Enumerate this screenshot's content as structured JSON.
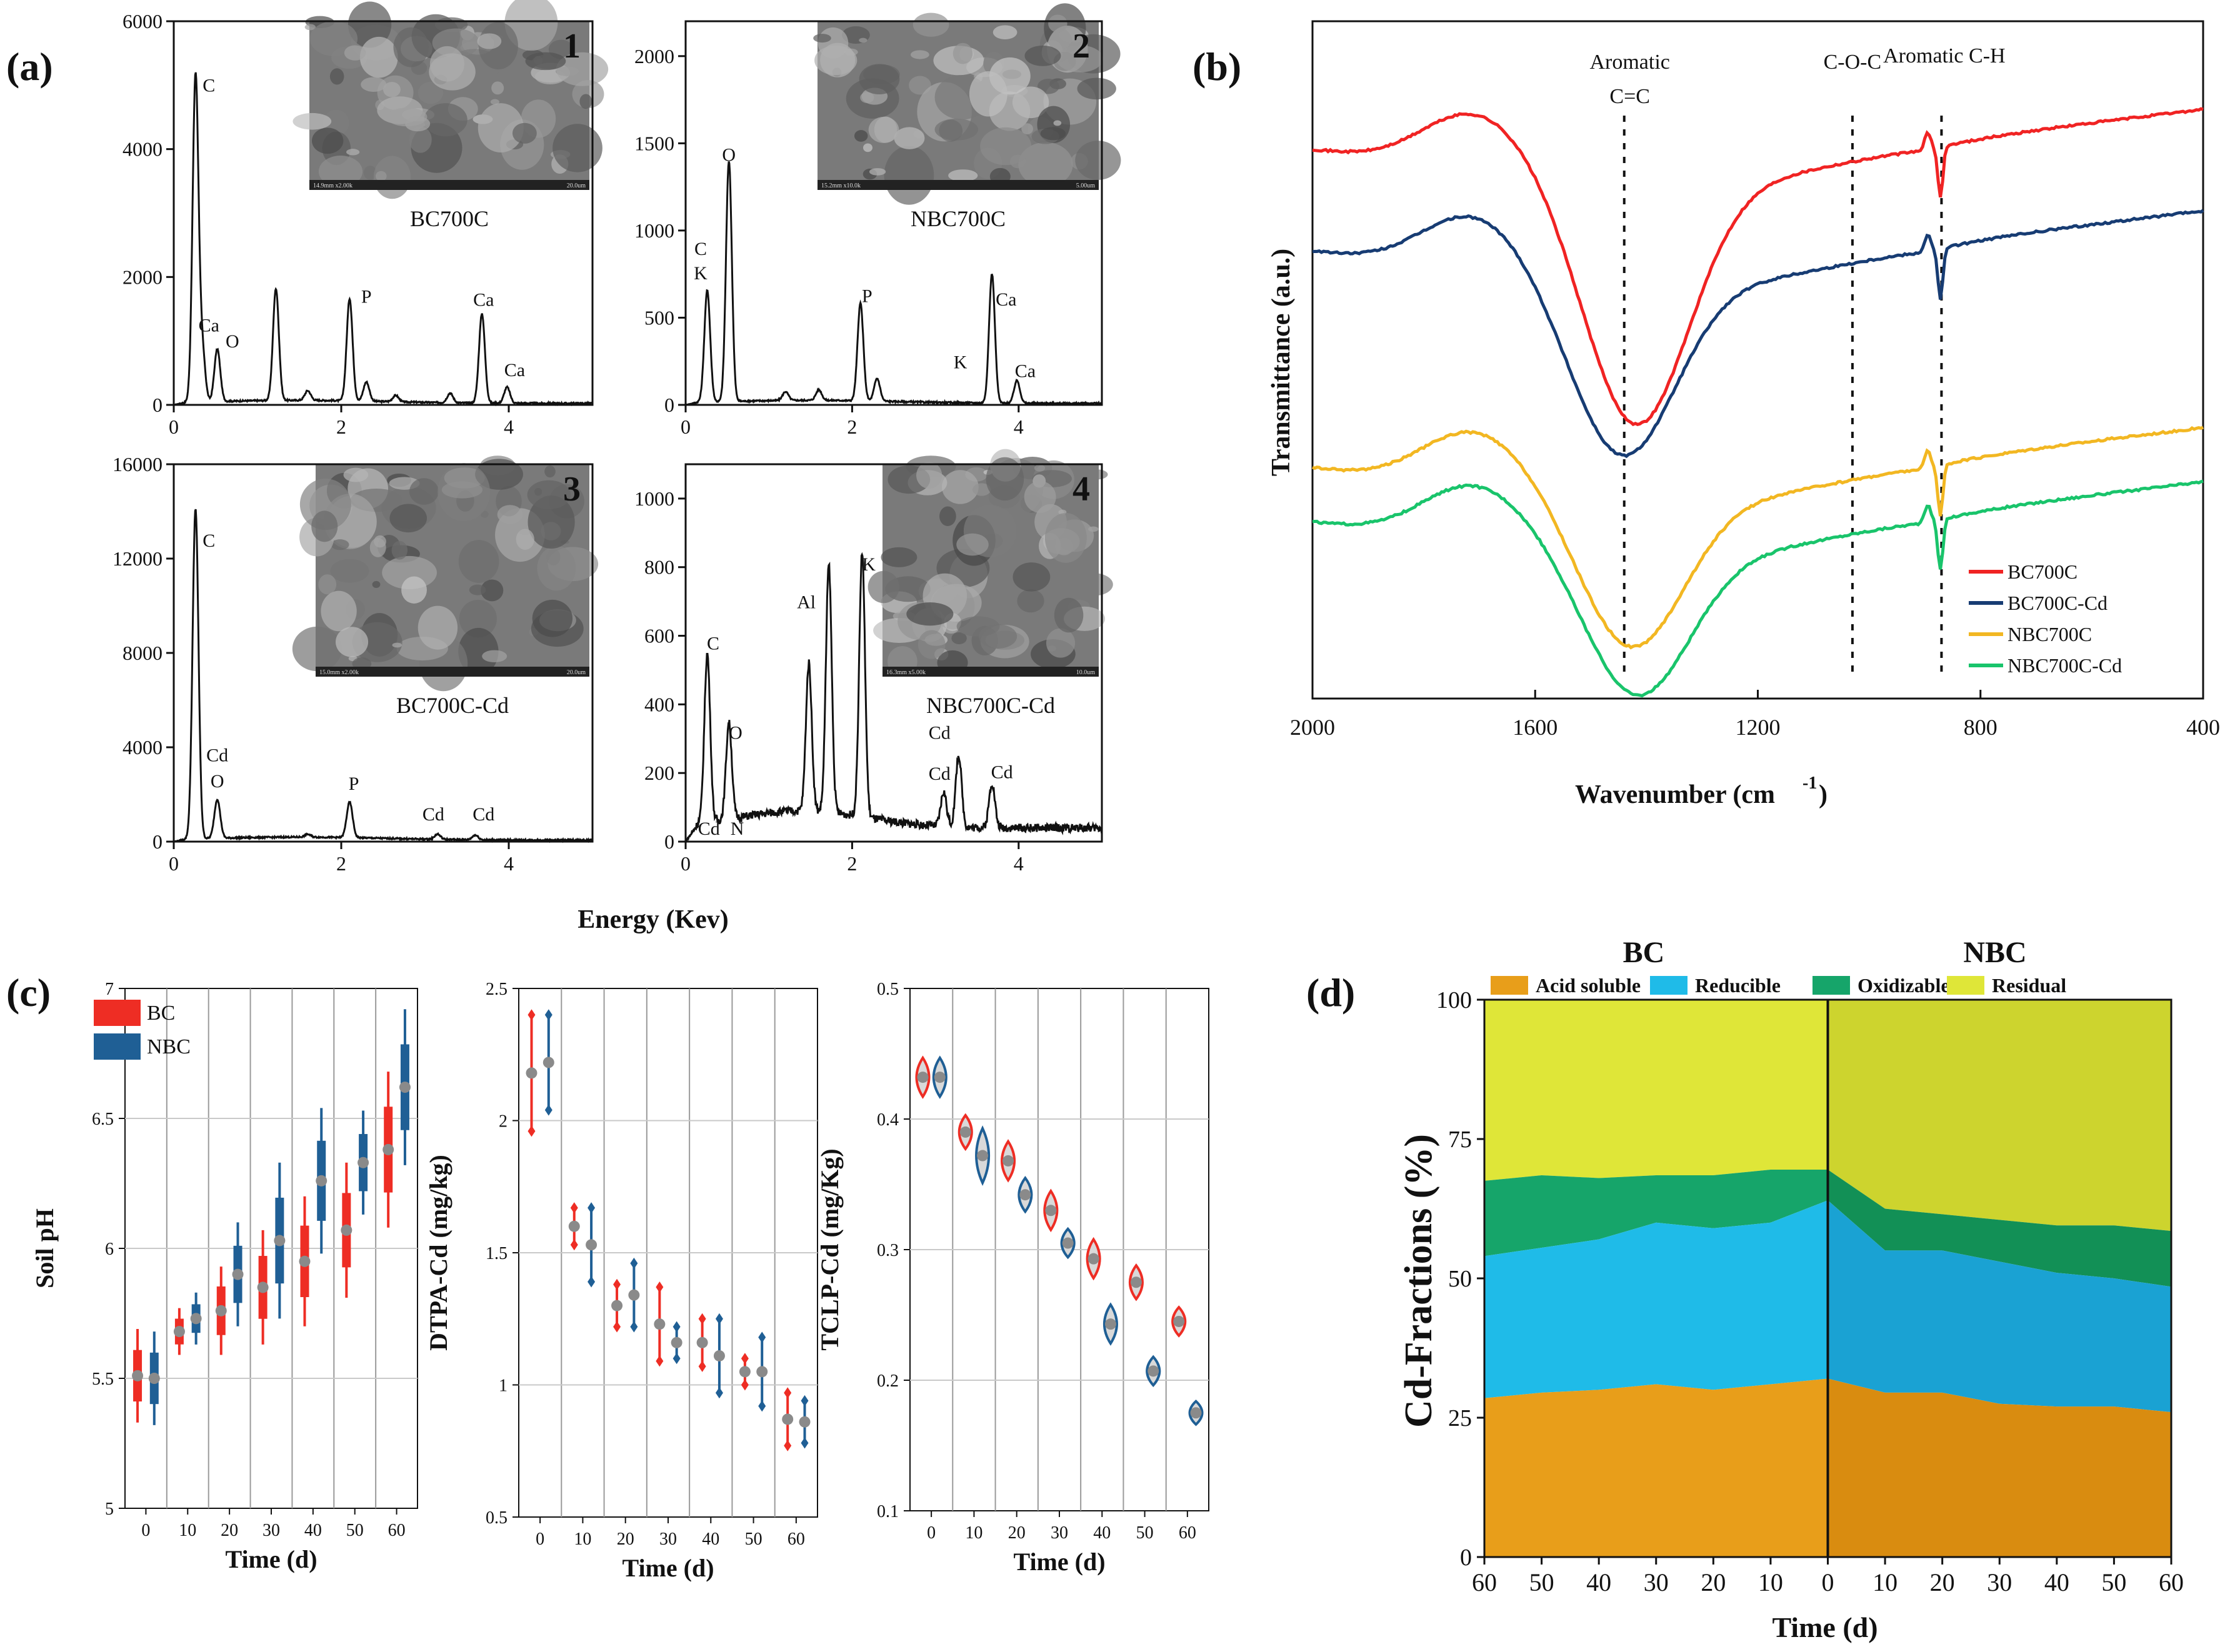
{
  "colors": {
    "bc": "#ee2d24",
    "nbc": "#1f5f95",
    "ftir": [
      "#f02323",
      "#173c73",
      "#f2b722",
      "#19c46b"
    ],
    "fractions": [
      "#e89e1a",
      "#1fbbe8",
      "#16a56a",
      "#dfe638"
    ],
    "fractions_dark": [
      "#d98c10",
      "#1aa2d3",
      "#129056",
      "#cdd42e"
    ],
    "sem_bg": "#7a7a7a"
  },
  "figure": {
    "panel_a_letter": "(a)",
    "panel_b_letter": "(b)",
    "panel_c_letter": "(c)",
    "panel_d_letter": "(d)",
    "energy_xlabel": "Energy (Kev)"
  },
  "chart_data": [
    {
      "type": "line",
      "id": "eds1",
      "title": "BC700C",
      "inset_number": "1",
      "inset_caption": "14.9mm x2.00k",
      "inset_scale": "20.0um",
      "xlim": [
        0,
        5
      ],
      "ylim": [
        0,
        6000
      ],
      "xticks": [
        "0",
        "2",
        "4"
      ],
      "yticks": [
        "0",
        "2000",
        "4000",
        "6000"
      ],
      "xlabel": "Energy (Kev)",
      "peaks": [
        [
          0.26,
          5100
        ],
        [
          0.34,
          800
        ],
        [
          0.52,
          820
        ],
        [
          1.22,
          1750
        ],
        [
          1.6,
          150
        ],
        [
          2.1,
          1600
        ],
        [
          2.3,
          300
        ],
        [
          2.65,
          100
        ],
        [
          3.3,
          150
        ],
        [
          3.68,
          1400
        ],
        [
          3.98,
          250
        ]
      ],
      "labels": [
        {
          "text": "C",
          "x": 0.42,
          "y": 4900
        },
        {
          "text": "Ca",
          "x": 0.42,
          "y": 1150
        },
        {
          "text": "O",
          "x": 0.7,
          "y": 900
        },
        {
          "text": "P",
          "x": 2.3,
          "y": 1600
        },
        {
          "text": "Ca",
          "x": 3.7,
          "y": 1550
        },
        {
          "text": "Ca",
          "x": 4.07,
          "y": 450
        }
      ]
    },
    {
      "type": "line",
      "id": "eds2",
      "title": "NBC700C",
      "inset_number": "2",
      "inset_caption": "15.2mm x10.0k",
      "inset_scale": "5.00um",
      "xlim": [
        0,
        5
      ],
      "ylim": [
        0,
        2200
      ],
      "xticks": [
        "0",
        "2",
        "4"
      ],
      "yticks": [
        "0",
        "500",
        "1000",
        "1500",
        "2000"
      ],
      "xlabel": "Energy (Kev)",
      "peaks": [
        [
          0.26,
          640
        ],
        [
          0.52,
          1380
        ],
        [
          1.2,
          50
        ],
        [
          1.6,
          60
        ],
        [
          2.1,
          560
        ],
        [
          2.3,
          130
        ],
        [
          3.68,
          740
        ],
        [
          3.98,
          130
        ]
      ],
      "labels": [
        {
          "text": "O",
          "x": 0.52,
          "y": 1400
        },
        {
          "text": "C",
          "x": 0.18,
          "y": 860
        },
        {
          "text": "K",
          "x": 0.18,
          "y": 720
        },
        {
          "text": "P",
          "x": 2.18,
          "y": 590
        },
        {
          "text": "Ca",
          "x": 3.85,
          "y": 570
        },
        {
          "text": "K",
          "x": 3.3,
          "y": 210
        },
        {
          "text": "Ca",
          "x": 4.08,
          "y": 160
        }
      ]
    },
    {
      "type": "line",
      "id": "eds3",
      "title": "BC700C-Cd",
      "inset_number": "3",
      "inset_caption": "15.0mm x2.00k",
      "inset_scale": "20.0um",
      "xlim": [
        0,
        5
      ],
      "ylim": [
        0,
        16000
      ],
      "xticks": [
        "0",
        "2",
        "4"
      ],
      "yticks": [
        "0",
        "4000",
        "8000",
        "12000",
        "16000"
      ],
      "xlabel": "Energy (Kev)",
      "peaks": [
        [
          0.26,
          14000
        ],
        [
          0.52,
          1650
        ],
        [
          1.6,
          120
        ],
        [
          2.1,
          1500
        ],
        [
          3.15,
          220
        ],
        [
          3.6,
          200
        ]
      ],
      "labels": [
        {
          "text": "C",
          "x": 0.42,
          "y": 12500
        },
        {
          "text": "Cd",
          "x": 0.52,
          "y": 3400
        },
        {
          "text": "O",
          "x": 0.52,
          "y": 2300
        },
        {
          "text": "P",
          "x": 2.15,
          "y": 2200
        },
        {
          "text": "Cd",
          "x": 3.1,
          "y": 900
        },
        {
          "text": "Cd",
          "x": 3.7,
          "y": 900
        }
      ]
    },
    {
      "type": "line",
      "id": "eds4",
      "title": "NBC700C-Cd",
      "inset_number": "4",
      "inset_caption": "16.3mm x5.00k",
      "inset_scale": "10.0um",
      "xlim": [
        0,
        5
      ],
      "ylim": [
        0,
        1100
      ],
      "xticks": [
        "0",
        "2",
        "4"
      ],
      "yticks": [
        "0",
        "200",
        "400",
        "600",
        "800",
        "1000"
      ],
      "xlabel": "Energy (Kev)",
      "peaks": [
        [
          0.26,
          490
        ],
        [
          0.52,
          280
        ],
        [
          1.48,
          430
        ],
        [
          1.72,
          720
        ],
        [
          2.12,
          770
        ],
        [
          3.1,
          100
        ],
        [
          3.28,
          210
        ],
        [
          3.68,
          130
        ]
      ],
      "labels": [
        {
          "text": "C",
          "x": 0.33,
          "y": 560
        },
        {
          "text": "O",
          "x": 0.6,
          "y": 300
        },
        {
          "text": "Al",
          "x": 1.45,
          "y": 680
        },
        {
          "text": "K",
          "x": 2.2,
          "y": 790
        },
        {
          "text": "Cd",
          "x": 3.05,
          "y": 300
        },
        {
          "text": "Cd",
          "x": 3.05,
          "y": 180
        },
        {
          "text": "Cd",
          "x": 3.8,
          "y": 185
        },
        {
          "text": "Cd",
          "x": 0.28,
          "y": 20
        },
        {
          "text": "N",
          "x": 0.62,
          "y": 20
        }
      ]
    },
    {
      "type": "line",
      "id": "ftir",
      "xlabel": "Wavenumber (cm",
      "xlabel_sup": "-1",
      "xlabel_end": ")",
      "ylabel": "Transmittance (a.u.)",
      "xlim": [
        2000,
        400
      ],
      "xticks": [
        "2000",
        "1600",
        "1200",
        "800",
        "400"
      ],
      "annotations": [
        {
          "text": "Aromatic",
          "x": 1430
        },
        {
          "text": "C=C",
          "x": 1430
        },
        {
          "text": "C-O-C",
          "x": 1030
        },
        {
          "text": "Aromatic C-H",
          "x": 865
        }
      ],
      "dashed_lines": [
        1440,
        1030,
        870
      ],
      "series": [
        {
          "name": "BC700C",
          "baseline": 0.82,
          "drop": 0.38,
          "dip_x": 1420
        },
        {
          "name": "BC700C-Cd",
          "baseline": 0.67,
          "drop": 0.28,
          "dip_x": 1445
        },
        {
          "name": "NBC700C",
          "baseline": 0.35,
          "drop": 0.24,
          "dip_x": 1430
        },
        {
          "name": "NBC700C-Cd",
          "baseline": 0.27,
          "drop": 0.23,
          "dip_x": 1420
        }
      ]
    },
    {
      "type": "scatter",
      "id": "ph",
      "ylabel": "Soil pH",
      "xlabel": "Time (d)",
      "ylim": [
        5,
        7
      ],
      "yticks": [
        "5",
        "5.5",
        "6",
        "6.5",
        "7"
      ],
      "xticks": [
        "0",
        "10",
        "20",
        "30",
        "40",
        "50",
        "60"
      ],
      "legend": [
        "BC",
        "NBC"
      ],
      "series": [
        {
          "name": "BC",
          "values": [
            5.51,
            5.68,
            5.76,
            5.85,
            5.95,
            6.07,
            6.38
          ],
          "errors": [
            0.18,
            0.09,
            0.17,
            0.22,
            0.25,
            0.26,
            0.3
          ]
        },
        {
          "name": "NBC",
          "values": [
            5.5,
            5.73,
            5.9,
            6.03,
            6.26,
            6.33,
            6.62
          ],
          "errors": [
            0.18,
            0.1,
            0.2,
            0.3,
            0.28,
            0.2,
            0.3
          ]
        }
      ]
    },
    {
      "type": "scatter",
      "id": "dtpa",
      "ylabel": "DTPA-Cd (mg/kg)",
      "xlabel": "Time (d)",
      "ylim": [
        0.5,
        2.5
      ],
      "yticks": [
        "0.5",
        "1",
        "1.5",
        "2",
        "2.5"
      ],
      "xticks": [
        "0",
        "10",
        "20",
        "30",
        "40",
        "50",
        "60"
      ],
      "series": [
        {
          "name": "BC",
          "values": [
            2.18,
            1.6,
            1.3,
            1.23,
            1.16,
            1.05,
            0.87
          ],
          "errors": [
            0.22,
            0.07,
            0.08,
            0.14,
            0.09,
            0.05,
            0.1
          ]
        },
        {
          "name": "NBC",
          "values": [
            2.22,
            1.53,
            1.34,
            1.16,
            1.11,
            1.05,
            0.86
          ],
          "errors": [
            0.18,
            0.14,
            0.12,
            0.06,
            0.14,
            0.13,
            0.08
          ]
        }
      ]
    },
    {
      "type": "scatter",
      "id": "tclp",
      "ylabel": "TCLP-Cd (mg/Kg)",
      "xlabel": "Time (d)",
      "ylim": [
        0.1,
        0.5
      ],
      "yticks": [
        "0.1",
        "0.2",
        "0.3",
        "0.4",
        "0.5"
      ],
      "xticks": [
        "0",
        "10",
        "20",
        "30",
        "40",
        "50",
        "60"
      ],
      "series": [
        {
          "name": "BC",
          "values": [
            0.432,
            0.39,
            0.368,
            0.33,
            0.293,
            0.275,
            0.245
          ],
          "errors": [
            0.012,
            0.01,
            0.012,
            0.012,
            0.012,
            0.01,
            0.008
          ]
        },
        {
          "name": "NBC",
          "values": [
            0.432,
            0.372,
            0.342,
            0.305,
            0.243,
            0.207,
            0.175
          ],
          "errors": [
            0.012,
            0.018,
            0.01,
            0.008,
            0.012,
            0.008,
            0.006
          ]
        }
      ]
    },
    {
      "type": "area",
      "id": "fractions",
      "ylabel": "Cd-Fractions (%)",
      "xlabel": "Time (d)",
      "ylim": [
        0,
        100
      ],
      "yticks": [
        "0",
        "25",
        "50",
        "75",
        "100"
      ],
      "group_labels": [
        "BC",
        "NBC"
      ],
      "x_labels": [
        "60",
        "50",
        "40",
        "30",
        "20",
        "10",
        "0",
        "10",
        "20",
        "30",
        "40",
        "50",
        "60"
      ],
      "legend": [
        "Acid soluble",
        "Reducible",
        "Oxidizable",
        "Residual"
      ],
      "series": [
        {
          "name": "Acid soluble",
          "values": [
            28.5,
            29.5,
            30,
            31,
            30,
            31,
            32,
            29.5,
            29.5,
            27.5,
            27,
            27,
            26
          ]
        },
        {
          "name": "Reducible",
          "values": [
            54,
            55.5,
            57,
            60,
            59,
            60,
            64,
            55,
            55,
            53,
            51,
            50,
            48.5
          ]
        },
        {
          "name": "Oxidizable",
          "values": [
            67.5,
            68.5,
            68,
            68.5,
            68.5,
            69.5,
            69.5,
            62.5,
            61.5,
            60.5,
            59.5,
            59.5,
            58.5
          ]
        },
        {
          "name": "Residual",
          "values": [
            100,
            100,
            100,
            100,
            100,
            100,
            100,
            100,
            100,
            100,
            100,
            100,
            100
          ]
        }
      ]
    }
  ]
}
